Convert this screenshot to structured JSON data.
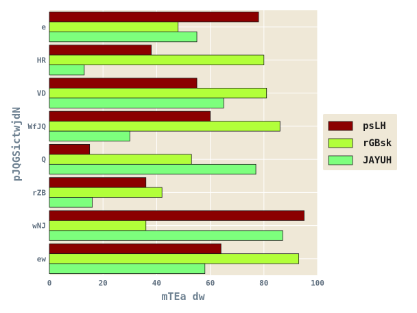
{
  "chart_data": {
    "type": "bar",
    "orientation": "horizontal",
    "categories": [
      "e",
      "HR",
      "VD",
      "WfJQ",
      "Q",
      "rZB",
      "wNJ",
      "ew"
    ],
    "series": [
      {
        "name": "psLH",
        "color": "#8b0000",
        "values": [
          78,
          38,
          55,
          60,
          15,
          36,
          95,
          64
        ]
      },
      {
        "name": "rGBsk",
        "color": "#b2ff3a",
        "values": [
          48,
          80,
          81,
          86,
          53,
          42,
          36,
          93
        ]
      },
      {
        "name": "JAYUH",
        "color": "#7dff7d",
        "values": [
          55,
          13,
          65,
          30,
          77,
          16,
          87,
          58
        ]
      }
    ],
    "xlabel": "mTEa dw",
    "ylabel": "pJQGSictwjdN",
    "xlim": [
      0,
      100
    ],
    "xticks": [
      0,
      20,
      40,
      60,
      80,
      100
    ],
    "grid": true,
    "legend_position": "right"
  },
  "colors": {
    "plot_background": "#efe8d7",
    "grid": "#ffffff",
    "bar_edge": "#1a1a1a"
  }
}
